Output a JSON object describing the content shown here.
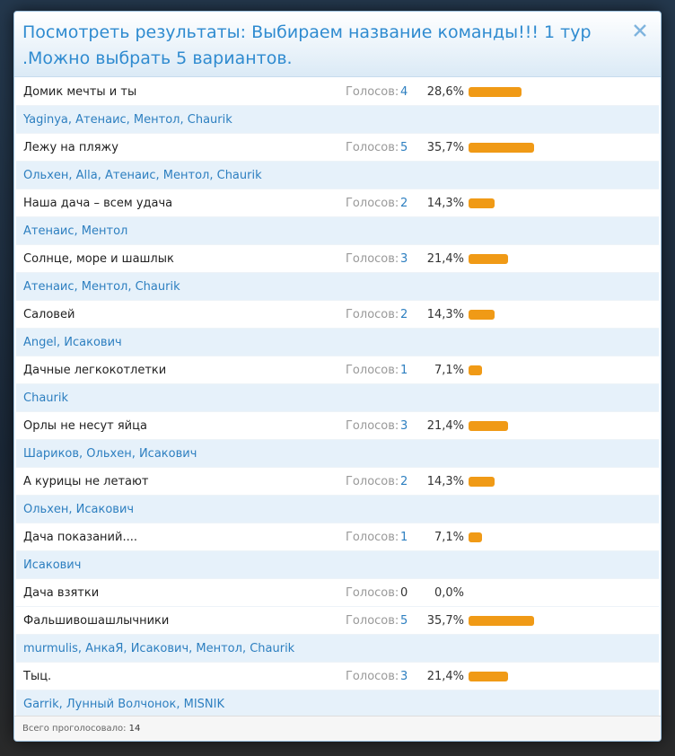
{
  "header": {
    "title": "Посмотреть результаты: Выбираем название команды!!! 1 тур .Можно выбрать 5 вариантов."
  },
  "votes_label": "Голосов:",
  "options": [
    {
      "label": "Домик мечты и ты",
      "votes": 4,
      "percent": 28.6,
      "percent_label": "28,6%",
      "voters": "Yaginya, Атенаис, Ментол, Chaurik"
    },
    {
      "label": "Лежу на пляжу",
      "votes": 5,
      "percent": 35.7,
      "percent_label": "35,7%",
      "voters": "Ольхен, Alla, Атенаис, Ментол, Chaurik"
    },
    {
      "label": "Наша дача – всем удача",
      "votes": 2,
      "percent": 14.3,
      "percent_label": "14,3%",
      "voters": "Атенаис, Ментол"
    },
    {
      "label": "Солнце, море и шашлык",
      "votes": 3,
      "percent": 21.4,
      "percent_label": "21,4%",
      "voters": "Атенаис, Ментол, Chaurik"
    },
    {
      "label": "Саловей",
      "votes": 2,
      "percent": 14.3,
      "percent_label": "14,3%",
      "voters": "Angel, Исакович"
    },
    {
      "label": "Дачные легкокотлетки",
      "votes": 1,
      "percent": 7.1,
      "percent_label": "7,1%",
      "voters": "Chaurik"
    },
    {
      "label": "Орлы не несут яйца",
      "votes": 3,
      "percent": 21.4,
      "percent_label": "21,4%",
      "voters": "Шариков, Ольхен, Исакович"
    },
    {
      "label": "А курицы не летают",
      "votes": 2,
      "percent": 14.3,
      "percent_label": "14,3%",
      "voters": "Ольхен, Исакович"
    },
    {
      "label": "Дача показаний....",
      "votes": 1,
      "percent": 7.1,
      "percent_label": "7,1%",
      "voters": "Исакович"
    },
    {
      "label": "Дача взятки",
      "votes": 0,
      "percent": 0,
      "percent_label": "0,0%"
    },
    {
      "label": "Фальшивошашлычники",
      "votes": 5,
      "percent": 35.7,
      "percent_label": "35,7%",
      "voters": "murmulis, АнкаЯ, Исакович, Ментол, Chaurik"
    },
    {
      "label": "Тыц.",
      "votes": 3,
      "percent": 21.4,
      "percent_label": "21,4%",
      "voters": "Garrik, Лунный Волчонок, MISNIK"
    }
  ],
  "footer": {
    "label": "Всего проголосовало:",
    "total": 14
  }
}
